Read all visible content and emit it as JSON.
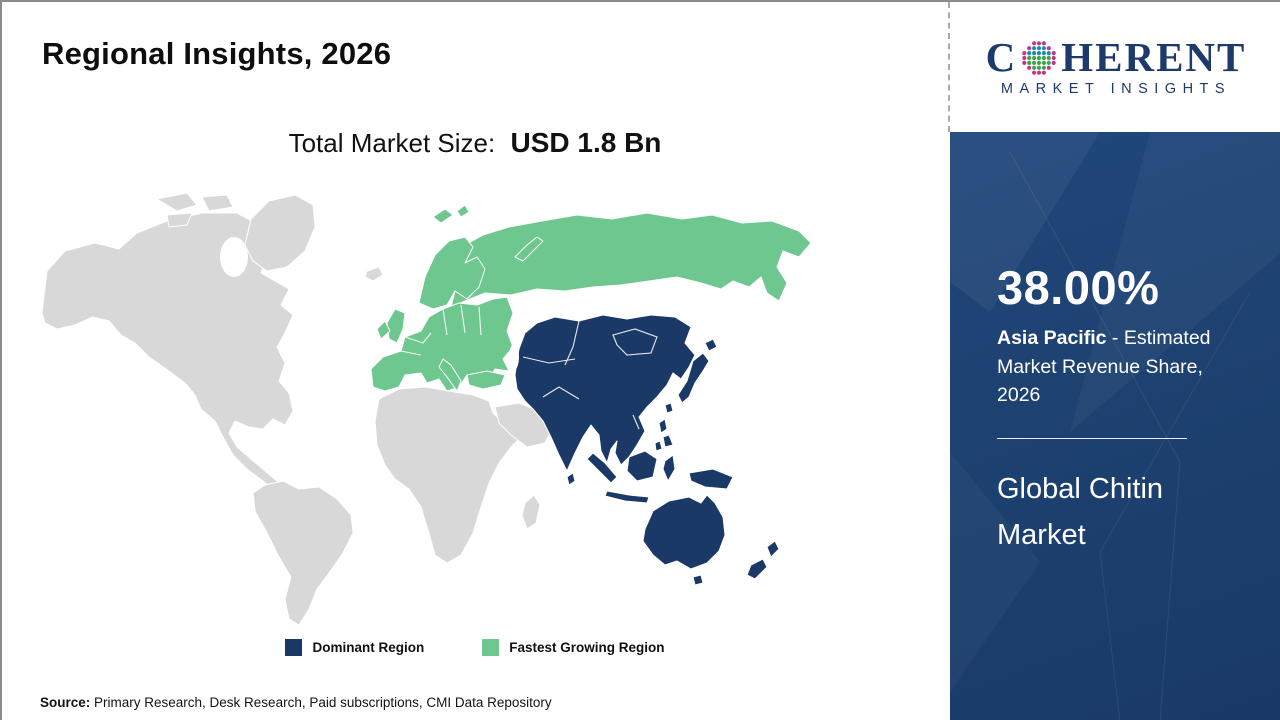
{
  "header": {
    "title": "Regional Insights, 2026"
  },
  "subtitle": {
    "label": "Total Market Size:",
    "value": "USD 1.8 Bn"
  },
  "logo": {
    "part1": "C",
    "part2": "HERENT",
    "subtitle": "MARKET INSIGHTS",
    "text_color": "#1e3a6c",
    "globe_colors": {
      "outer": "#c2378c",
      "mid": "#1f8ca8",
      "inner": "#3fa549"
    }
  },
  "map": {
    "colors": {
      "dominant": "#1b3967",
      "fastest": "#6ec78f",
      "other": "#d8d8d8",
      "border": "#ffffff"
    }
  },
  "legend": {
    "items": [
      {
        "label": "Dominant Region",
        "key": "dominant"
      },
      {
        "label": "Fastest Growing Region",
        "key": "fastest"
      }
    ]
  },
  "sidebar": {
    "stat_value": "38.00%",
    "stat_region": "Asia Pacific",
    "stat_desc": " - Estimated Market Revenue Share, 2026",
    "market_name": "Global Chitin Market"
  },
  "source": {
    "label": "Source:",
    "text": " Primary Research, Desk Research, Paid subscriptions, CMI Data Repository"
  }
}
